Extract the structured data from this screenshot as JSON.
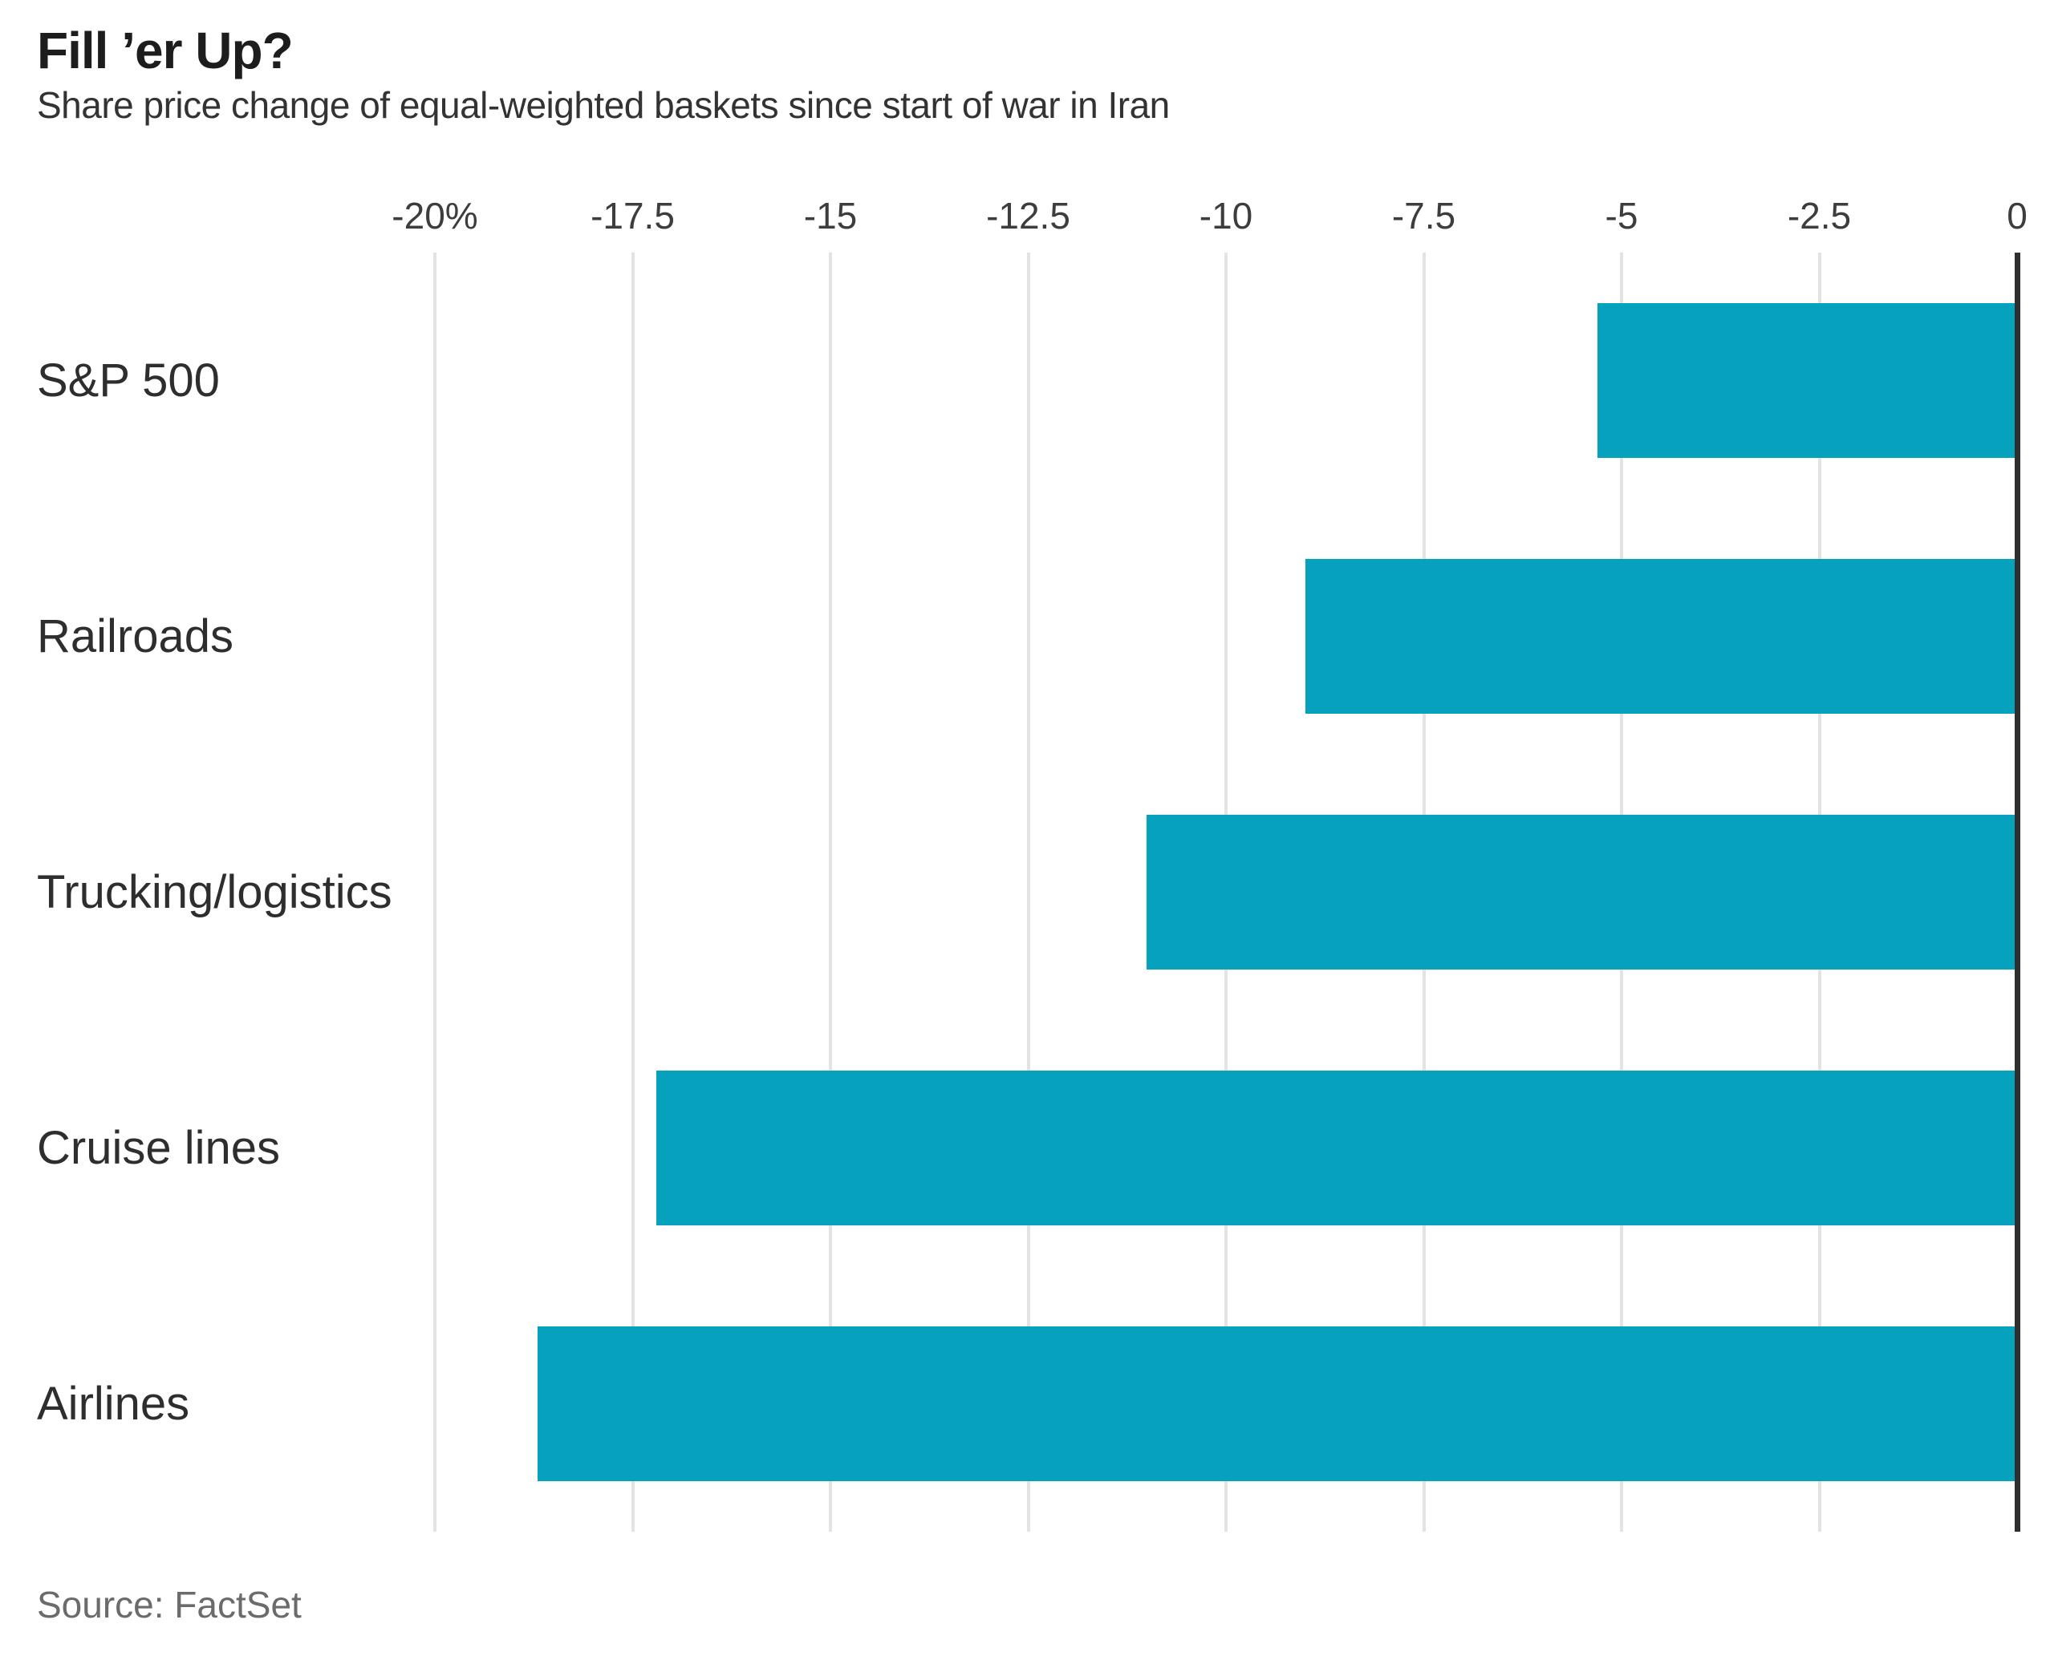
{
  "header": {
    "title": "Fill ’er Up?",
    "subtitle": "Share price change of equal-weighted baskets since start of war in Iran"
  },
  "footer": {
    "source": "Source: FactSet"
  },
  "colors": {
    "bar": "#05a1bd",
    "gridline": "#e3e3e3",
    "zero_axis": "#2e2e2e",
    "title_text": "#1d1d1d",
    "subtitle_text": "#333333",
    "tick_text": "#3d3d3d",
    "category_text": "#2e2e2e",
    "source_text": "#6b6b6b"
  },
  "chart_data": {
    "type": "bar",
    "orientation": "horizontal",
    "title": "Fill ’er Up?",
    "subtitle": "Share price change of equal-weighted baskets since start of war in Iran",
    "xlabel": "",
    "ylabel": "",
    "unit": "percent",
    "xlim": [
      -20,
      0
    ],
    "grid": "vertical",
    "legend": "none",
    "categories": [
      "S&P 500",
      "Railroads",
      "Trucking/logistics",
      "Cruise lines",
      "Airlines"
    ],
    "values": [
      -5.3,
      -9.0,
      -11.0,
      -17.2,
      -18.7
    ],
    "xticks": [
      {
        "value": -20,
        "label": "-20%"
      },
      {
        "value": -17.5,
        "label": "-17.5"
      },
      {
        "value": -15,
        "label": "-15"
      },
      {
        "value": -12.5,
        "label": "-12.5"
      },
      {
        "value": -10,
        "label": "-10"
      },
      {
        "value": -7.5,
        "label": "-7.5"
      },
      {
        "value": -5,
        "label": "-5"
      },
      {
        "value": -2.5,
        "label": "-2.5"
      },
      {
        "value": 0,
        "label": "0"
      }
    ]
  }
}
